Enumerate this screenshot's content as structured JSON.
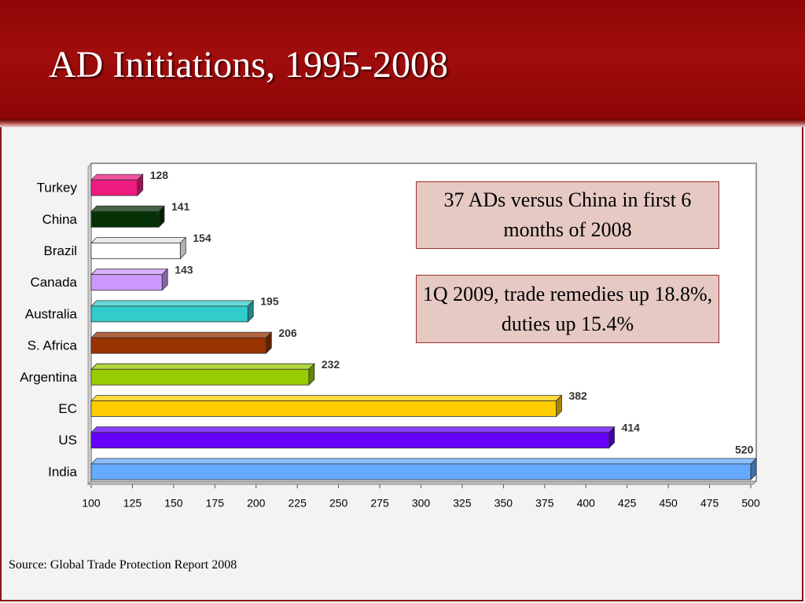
{
  "slide": {
    "title": "AD Initiations, 1995-2008",
    "source": "Source: Global Trade Protection Report 2008"
  },
  "callouts": [
    "37 ADs versus China in first 6 months of 2008",
    "1Q 2009, trade remedies up 18.8%, duties up 15.4%"
  ],
  "colors": {
    "header": "#9a0909",
    "callout_fill": "#e6c9c3",
    "callout_border": "#9a3030"
  },
  "chart_data": {
    "type": "bar",
    "orientation": "horizontal",
    "style": "3d",
    "categories": [
      "Turkey",
      "China",
      "Brazil",
      "Canada",
      "Australia",
      "S. Africa",
      "Argentina",
      "EC",
      "US",
      "India"
    ],
    "values": [
      128,
      141,
      154,
      143,
      195,
      206,
      232,
      382,
      414,
      520
    ],
    "data_labels": [
      "128",
      "141",
      "154",
      "143",
      "195",
      "206",
      "232",
      "382",
      "414",
      "520"
    ],
    "bar_colors": [
      "#ee1a7f",
      "#063106",
      "#ffffff",
      "#cc99ff",
      "#33cccc",
      "#993300",
      "#99cc00",
      "#ffcc00",
      "#6600ff",
      "#66aaff"
    ],
    "xlim": [
      100,
      500
    ],
    "x_ticks": [
      100,
      125,
      150,
      175,
      200,
      225,
      250,
      275,
      300,
      325,
      350,
      375,
      400,
      425,
      450,
      475,
      500
    ],
    "grid": false,
    "legend": "none"
  }
}
